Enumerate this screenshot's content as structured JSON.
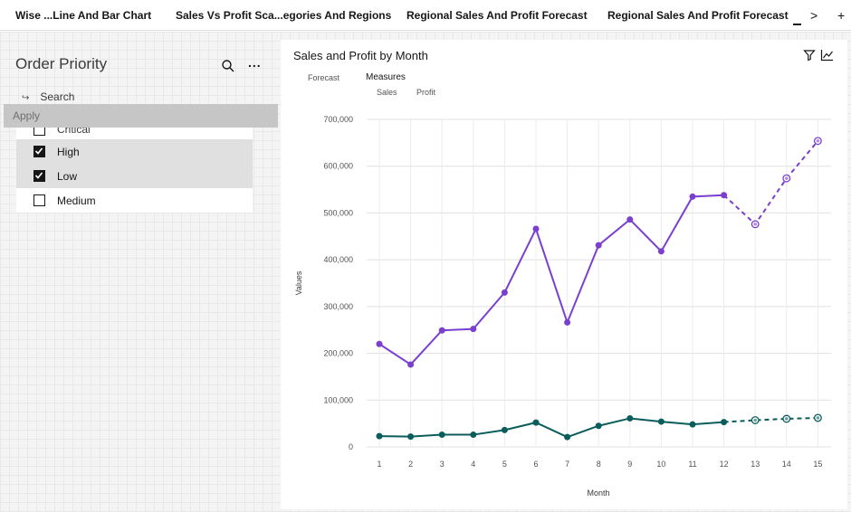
{
  "tabs": [
    {
      "label": "Wise ...Line And Bar Chart"
    },
    {
      "label": "Sales Vs Profit Sca...egories And Regions"
    },
    {
      "label": "Regional Sales And Profit Forecast"
    },
    {
      "label": "Regional Sales And Profit Forecast"
    }
  ],
  "tab_controls": {
    "next": ">",
    "add": "+"
  },
  "filter_panel": {
    "title": "Order Priority",
    "search_placeholder": "Search",
    "apply_label": "Apply",
    "more_label": "...",
    "items": [
      {
        "label": "Critical",
        "checked": false
      },
      {
        "label": "High",
        "checked": true
      },
      {
        "label": "Low",
        "checked": true
      },
      {
        "label": "Medium",
        "checked": false
      }
    ]
  },
  "chart_card": {
    "title": "Sales and Profit by Month",
    "legend": {
      "forecast_label": "Forecast",
      "measures_label": "Measures",
      "sales_label": "Sales",
      "profit_label": "Profit"
    }
  },
  "colors": {
    "sales": "#7b3fd0",
    "profit": "#0b5d5b"
  },
  "chart_data": {
    "type": "line",
    "title": "Sales and Profit by Month",
    "xlabel": "Month",
    "ylabel": "Values",
    "x": [
      1,
      2,
      3,
      4,
      5,
      6,
      7,
      8,
      9,
      10,
      11,
      12,
      13,
      14,
      15
    ],
    "ylim": [
      0,
      700000
    ],
    "yticks": [
      0,
      100000,
      200000,
      300000,
      400000,
      500000,
      600000,
      700000
    ],
    "ytick_labels": [
      "0",
      "100,000",
      "200,000",
      "300,000",
      "400,000",
      "500,000",
      "600,000",
      "700,000"
    ],
    "grid": true,
    "forecast_start_month": 13,
    "series": [
      {
        "name": "Sales",
        "values": [
          220000,
          176000,
          249000,
          252000,
          330000,
          466000,
          266000,
          431000,
          486000,
          418000,
          535000,
          538000,
          476000,
          574000,
          654000
        ]
      },
      {
        "name": "Profit",
        "values": [
          23000,
          22000,
          26000,
          26000,
          36000,
          52000,
          21000,
          45000,
          61000,
          54000,
          48000,
          53000,
          57000,
          60000,
          62000
        ]
      }
    ]
  }
}
